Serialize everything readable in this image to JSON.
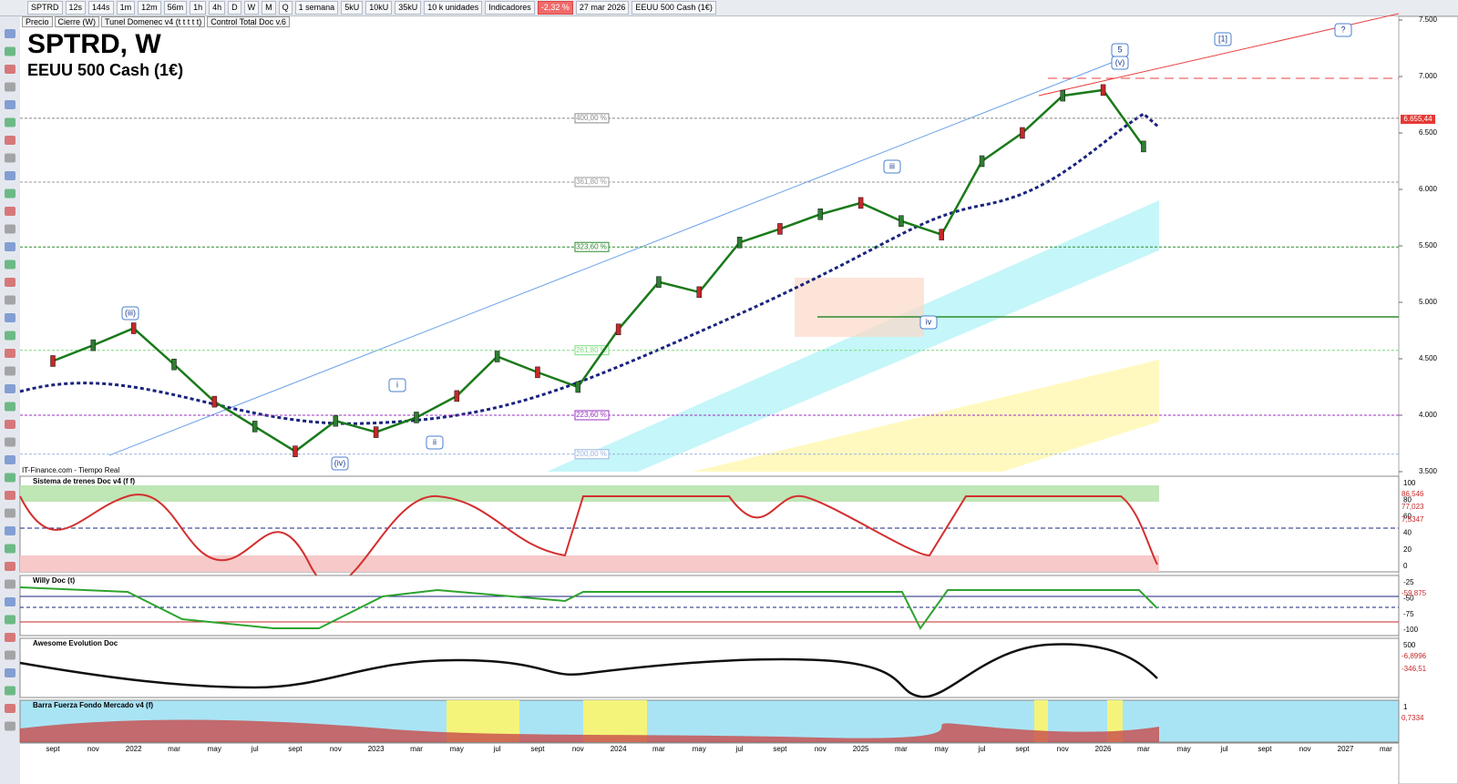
{
  "toolbar": {
    "symbol": "SPTRD",
    "timeframes": [
      "12s",
      "144s",
      "1m",
      "12m",
      "56m",
      "1h",
      "4h",
      "D",
      "W",
      "M",
      "Q"
    ],
    "period": "1 semana",
    "units": [
      "5kU",
      "10kU",
      "35kU"
    ],
    "unit_select": "10 k unidades",
    "indicators": "Indicadores",
    "change": "-2,32 %",
    "date": "27 mar 2026",
    "instrument": "EEUU 500 Cash (1€)"
  },
  "legend_bar": [
    "Precio",
    "Cierre (W)",
    "Tunel Domenec v4 (t t t t t)",
    "Control Total Doc v.6"
  ],
  "chart_data": {
    "type": "line",
    "title": "SPTRD, W",
    "subtitle": "EEUU 500 Cash (1€)",
    "source": "IT-Finance.com - Tiempo Real",
    "categories": [
      "sept",
      "nov",
      "2022",
      "mar",
      "may",
      "jul",
      "sept",
      "nov",
      "2023",
      "mar",
      "may",
      "jul",
      "sept",
      "nov",
      "2024",
      "mar",
      "may",
      "jul",
      "sept",
      "nov",
      "2025",
      "mar",
      "may",
      "jul",
      "sept",
      "nov",
      "2026",
      "mar",
      "may",
      "jul",
      "sept",
      "nov",
      "2027",
      "mar"
    ],
    "values": [
      4480,
      4620,
      4770,
      4450,
      4120,
      3900,
      3680,
      3950,
      3850,
      3980,
      4170,
      4520,
      4380,
      4250,
      4760,
      5180,
      5090,
      5530,
      5650,
      5780,
      5880,
      5720,
      5600,
      6250,
      6500,
      6830,
      6880,
      6380,
      null,
      null,
      null,
      null,
      null,
      null
    ],
    "color": "#1a7a1a",
    "ylim": [
      3500,
      7500
    ],
    "yticks": [
      {
        "value": 3500,
        "label": "3.500"
      },
      {
        "value": 4000,
        "label": "4.000"
      },
      {
        "value": 4500,
        "label": "4.500"
      },
      {
        "value": 5000,
        "label": "5.000"
      },
      {
        "value": 5500,
        "label": "5.500"
      },
      {
        "value": 6000,
        "label": "6.000"
      },
      {
        "value": 6500,
        "label": "6.500"
      },
      {
        "value": 7000,
        "label": "7.000"
      },
      {
        "value": 7500,
        "label": "7.500"
      }
    ],
    "fib_levels": [
      {
        "label": "400,00 %",
        "value": 6630,
        "color": "#888888"
      },
      {
        "label": "361,80 %",
        "value": 6065,
        "color": "#999999"
      },
      {
        "label": "323,60 %",
        "value": 5490,
        "color": "#2e8b2e"
      },
      {
        "label": "261,80 %",
        "value": 4575,
        "color": "#7ddc7d"
      },
      {
        "label": "223,60 %",
        "value": 4000,
        "color": "#9b30c0"
      },
      {
        "label": "200,00 %",
        "value": 3655,
        "color": "#9ab4e0"
      }
    ],
    "last_price_label": "6.655,44",
    "waves": [
      "5",
      "(v)",
      "[1]",
      "?",
      "iii",
      "iv",
      "(iii)",
      "i",
      "ii",
      "(iv)"
    ]
  },
  "panels": [
    {
      "title": "Sistema de trenes Doc v4 (f f)",
      "ticks": [
        "100",
        "80",
        "60",
        "40",
        "20",
        "0"
      ],
      "labels": [
        "86,546",
        "77,023",
        "7,5347"
      ]
    },
    {
      "title": "Willy Doc (t)",
      "ticks": [
        "-25",
        "-50",
        "-75",
        "-100"
      ],
      "labels": [
        "-59,875"
      ]
    },
    {
      "title": "Awesome Evolution Doc",
      "ticks": [
        "500"
      ],
      "labels": [
        "-6,8996",
        "-346,51"
      ]
    },
    {
      "title": "Barra Fuerza Fondo Mercado v4 (f)",
      "ticks": [
        "1"
      ],
      "labels": [
        "0,7334"
      ]
    }
  ]
}
